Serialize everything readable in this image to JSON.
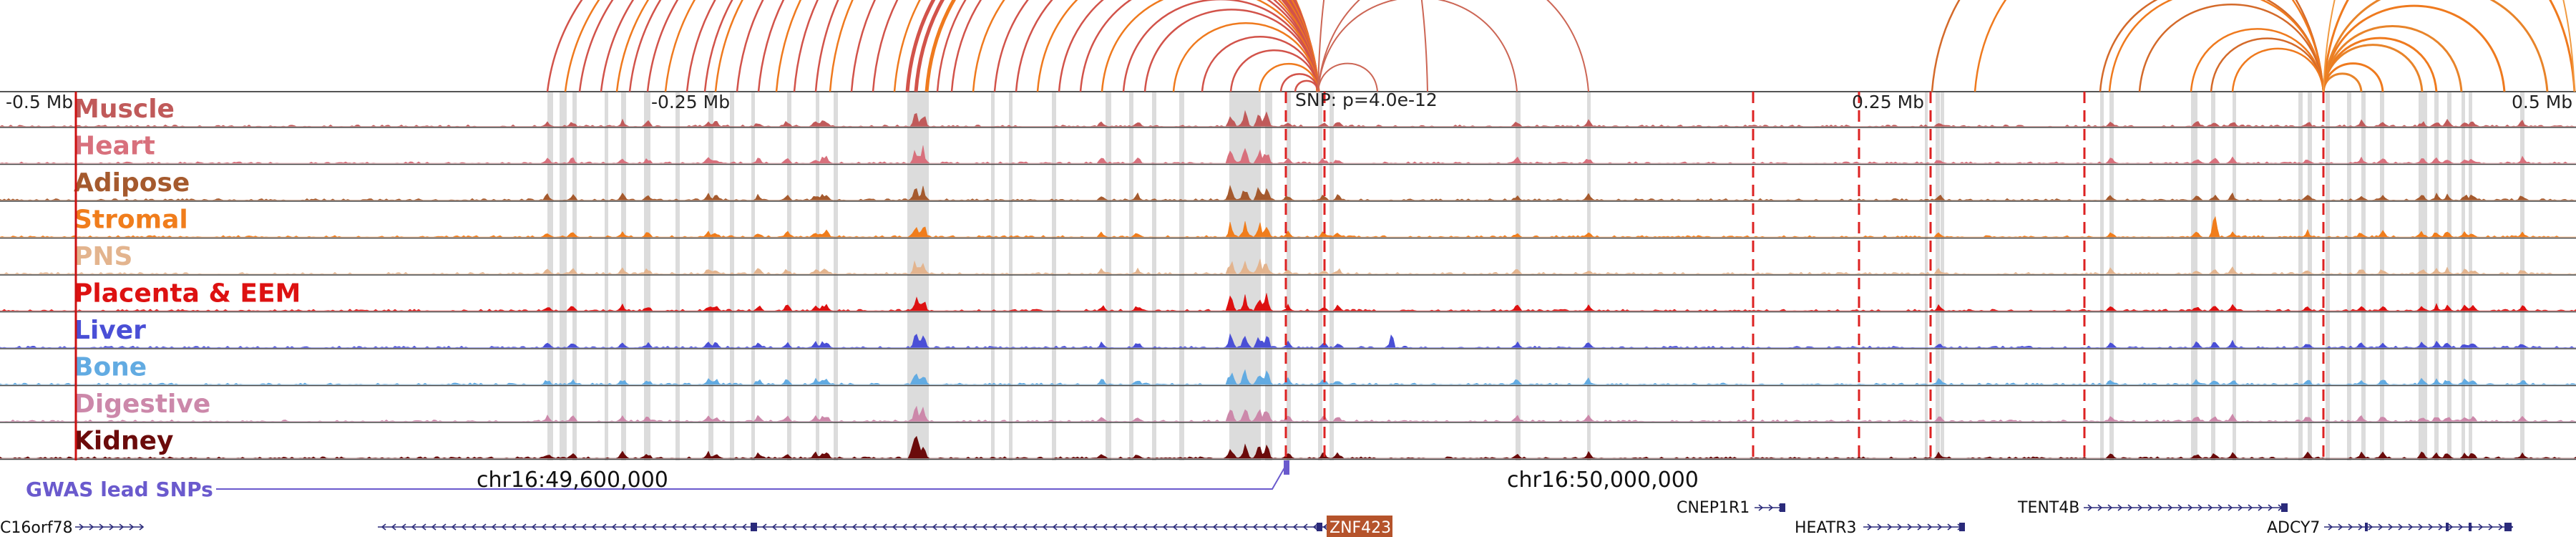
{
  "axis": {
    "left_label": "-0.5 Mb",
    "left_mid_label": "-0.25 Mb",
    "right_mid_label": "0.25 Mb",
    "right_label": "0.5 Mb",
    "snp_label": "SNP: p=4.0e-12"
  },
  "tracks": [
    {
      "name": "Muscle",
      "color": "#c05a5a"
    },
    {
      "name": "Heart",
      "color": "#d8707c"
    },
    {
      "name": "Adipose",
      "color": "#a55a2e"
    },
    {
      "name": "Stromal",
      "color": "#f07d1c"
    },
    {
      "name": "PNS",
      "color": "#e3b48e"
    },
    {
      "name": "Placenta & EEM",
      "color": "#dd1111"
    },
    {
      "name": "Liver",
      "color": "#4a4fd6"
    },
    {
      "name": "Bone",
      "color": "#62abe2"
    },
    {
      "name": "Digestive",
      "color": "#cc88aa"
    },
    {
      "name": "Kidney",
      "color": "#6b0b0b"
    }
  ],
  "gwas": {
    "label": "GWAS lead SNPs",
    "color": "#6a5acd"
  },
  "coords": {
    "left": "chr16:49,600,000",
    "right": "chr16:50,000,000"
  },
  "genes": [
    {
      "name": "C16orf78",
      "highlight": false
    },
    {
      "name": "ZNF423",
      "highlight": true
    },
    {
      "name": "CNEP1R1",
      "highlight": false
    },
    {
      "name": "HEATR3",
      "highlight": false
    },
    {
      "name": "TENT4B",
      "highlight": false
    },
    {
      "name": "ADCY7",
      "highlight": false
    }
  ],
  "colors": {
    "loop_red": "#d2534a",
    "loop_orange": "#ef7a1e",
    "loop_thin": "#cc6655",
    "peak_highlight": "#dcdcdc",
    "dashed_marker": "#dd2222",
    "gene_model": "#2a2a7a",
    "gene_highlight_bg": "#b5532b",
    "gene_highlight_text": "#ffffff",
    "text": "#111111",
    "track_border": "#444444"
  }
}
